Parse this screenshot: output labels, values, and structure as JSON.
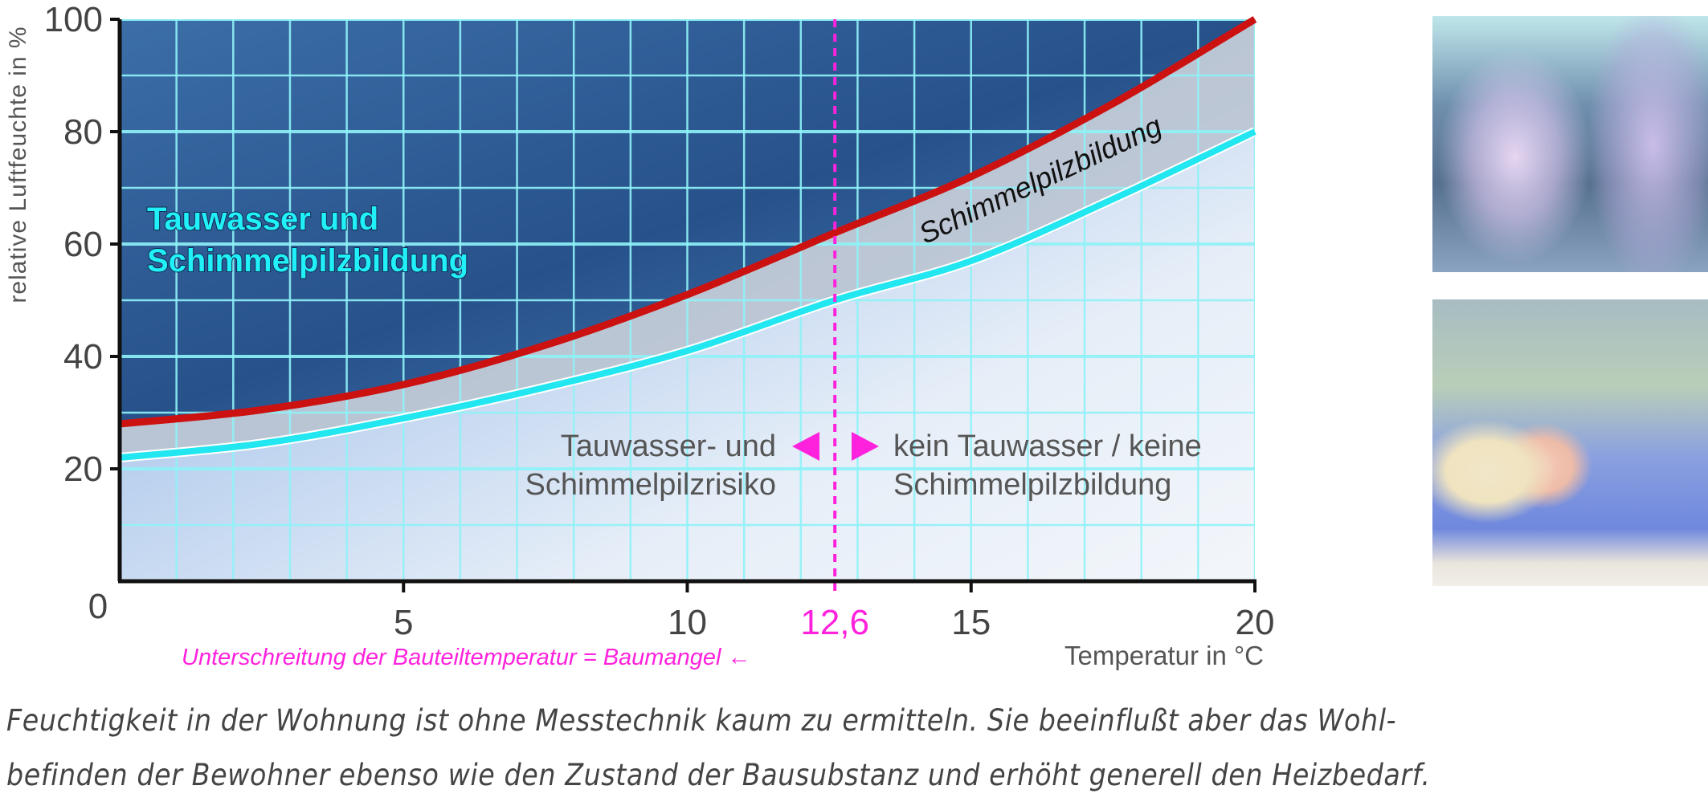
{
  "chart_data": {
    "type": "line",
    "xlabel": "Temperatur in °C",
    "ylabel": "relative Luftfeuchte in %",
    "xlim": [
      0,
      20
    ],
    "ylim": [
      0,
      100
    ],
    "x_ticks": [
      "0",
      "5",
      "10",
      "15",
      "20"
    ],
    "y_ticks": [
      "20",
      "40",
      "60",
      "80",
      "100"
    ],
    "grid": true,
    "grid_step": {
      "x": 1,
      "y": 10
    },
    "series": [
      {
        "color": "#cc1111",
        "x": [
          0,
          2.5,
          5,
          7.5,
          10,
          12.6,
          15,
          17.5,
          20
        ],
        "y": [
          28,
          30.5,
          35,
          42,
          51,
          62,
          72,
          85,
          100
        ]
      },
      {
        "color": "#22e6f0",
        "x": [
          0,
          2.5,
          5,
          7.5,
          10,
          12.6,
          15,
          17.5,
          20
        ],
        "y": [
          22,
          24.5,
          29,
          34.5,
          41,
          50,
          57,
          68,
          80
        ]
      }
    ],
    "marker_line": {
      "x": 12.6,
      "label": "12,6",
      "color": "#ff22dd"
    },
    "annotations": {
      "zone_dew": [
        "Tauwasser und",
        "Schimmelpilzbildung"
      ],
      "zone_mold": "Schimmelpilzbildung",
      "risk_left": [
        "Tauwasser- und",
        "Schimmelpilzrisiko"
      ],
      "safe_right": [
        "kein Tauwasser / keine",
        "Schimmelpilzbildung"
      ],
      "footnote": "Unterschreitung der Bauteiltemperatur = Baumangel ←"
    },
    "colors": {
      "accent": "#ff22dd",
      "grid": "#8ff3f8",
      "text": "#555555"
    }
  },
  "caption": [
    "Feuchtigkeit in der Wohnung ist ohne Messtechnik kaum zu ermitteln. Sie beeinflußt aber das Wohl-",
    "befinden der Bewohner ebenso wie den Zustand der Bausubstanz und erhöht generell den Heizbedarf."
  ],
  "photos": [
    "condensation-window-hand-photo",
    "sleeping-woman-photo"
  ]
}
